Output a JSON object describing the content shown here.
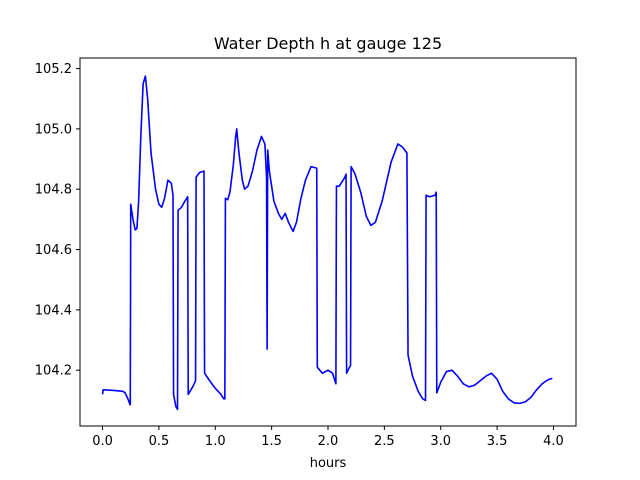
{
  "chart_data": {
    "type": "line",
    "title": "Water Depth h at gauge 125",
    "xlabel": "hours",
    "ylabel": "",
    "xlim": [
      -0.2,
      4.2
    ],
    "ylim": [
      104.015,
      105.235
    ],
    "xticks": [
      0.0,
      0.5,
      1.0,
      1.5,
      2.0,
      2.5,
      3.0,
      3.5,
      4.0
    ],
    "xtick_labels": [
      "0.0",
      "0.5",
      "1.0",
      "1.5",
      "2.0",
      "2.5",
      "3.0",
      "3.5",
      "4.0"
    ],
    "yticks": [
      104.2,
      104.4,
      104.6,
      104.8,
      105.0,
      105.2
    ],
    "ytick_labels": [
      "104.2",
      "104.4",
      "104.6",
      "104.8",
      "105.0",
      "105.2"
    ],
    "grid": false,
    "legend": "none",
    "series": [
      {
        "color": "#0000ff",
        "points": [
          [
            0.0,
            104.12
          ],
          [
            0.005,
            104.135
          ],
          [
            0.1,
            104.133
          ],
          [
            0.18,
            104.13
          ],
          [
            0.2,
            104.125
          ],
          [
            0.225,
            104.105
          ],
          [
            0.245,
            104.085
          ],
          [
            0.246,
            104.09
          ],
          [
            0.25,
            104.75
          ],
          [
            0.27,
            104.7
          ],
          [
            0.29,
            104.665
          ],
          [
            0.305,
            104.67
          ],
          [
            0.32,
            104.76
          ],
          [
            0.34,
            104.98
          ],
          [
            0.36,
            105.15
          ],
          [
            0.38,
            105.175
          ],
          [
            0.4,
            105.1
          ],
          [
            0.43,
            104.92
          ],
          [
            0.47,
            104.8
          ],
          [
            0.5,
            104.75
          ],
          [
            0.525,
            104.74
          ],
          [
            0.55,
            104.77
          ],
          [
            0.58,
            104.83
          ],
          [
            0.61,
            104.82
          ],
          [
            0.625,
            104.78
          ],
          [
            0.63,
            104.12
          ],
          [
            0.65,
            104.08
          ],
          [
            0.665,
            104.07
          ],
          [
            0.67,
            104.73
          ],
          [
            0.7,
            104.74
          ],
          [
            0.73,
            104.76
          ],
          [
            0.755,
            104.775
          ],
          [
            0.76,
            104.12
          ],
          [
            0.8,
            104.145
          ],
          [
            0.825,
            104.165
          ],
          [
            0.83,
            104.84
          ],
          [
            0.86,
            104.855
          ],
          [
            0.9,
            104.86
          ],
          [
            0.905,
            104.19
          ],
          [
            0.95,
            104.165
          ],
          [
            1.0,
            104.14
          ],
          [
            1.05,
            104.12
          ],
          [
            1.075,
            104.105
          ],
          [
            1.085,
            104.105
          ],
          [
            1.09,
            104.77
          ],
          [
            1.11,
            104.765
          ],
          [
            1.13,
            104.79
          ],
          [
            1.16,
            104.88
          ],
          [
            1.18,
            104.97
          ],
          [
            1.19,
            105.0
          ],
          [
            1.21,
            104.92
          ],
          [
            1.24,
            104.83
          ],
          [
            1.26,
            104.8
          ],
          [
            1.29,
            104.81
          ],
          [
            1.33,
            104.86
          ],
          [
            1.37,
            104.93
          ],
          [
            1.41,
            104.975
          ],
          [
            1.44,
            104.95
          ],
          [
            1.455,
            104.84
          ],
          [
            1.46,
            104.27
          ],
          [
            1.465,
            104.93
          ],
          [
            1.48,
            104.86
          ],
          [
            1.52,
            104.76
          ],
          [
            1.56,
            104.72
          ],
          [
            1.59,
            104.7
          ],
          [
            1.62,
            104.72
          ],
          [
            1.65,
            104.69
          ],
          [
            1.69,
            104.66
          ],
          [
            1.72,
            104.69
          ],
          [
            1.76,
            104.77
          ],
          [
            1.8,
            104.83
          ],
          [
            1.85,
            104.875
          ],
          [
            1.9,
            104.87
          ],
          [
            1.905,
            104.21
          ],
          [
            1.95,
            104.19
          ],
          [
            2.0,
            104.2
          ],
          [
            2.04,
            104.19
          ],
          [
            2.07,
            104.155
          ],
          [
            2.075,
            104.81
          ],
          [
            2.1,
            104.81
          ],
          [
            2.15,
            104.84
          ],
          [
            2.16,
            104.85
          ],
          [
            2.165,
            104.19
          ],
          [
            2.19,
            104.21
          ],
          [
            2.2,
            104.215
          ],
          [
            2.205,
            104.875
          ],
          [
            2.24,
            104.85
          ],
          [
            2.29,
            104.79
          ],
          [
            2.34,
            104.71
          ],
          [
            2.38,
            104.68
          ],
          [
            2.42,
            104.69
          ],
          [
            2.48,
            104.76
          ],
          [
            2.56,
            104.89
          ],
          [
            2.62,
            104.95
          ],
          [
            2.66,
            104.94
          ],
          [
            2.7,
            104.92
          ],
          [
            2.71,
            104.25
          ],
          [
            2.75,
            104.18
          ],
          [
            2.8,
            104.13
          ],
          [
            2.84,
            104.105
          ],
          [
            2.865,
            104.1
          ],
          [
            2.87,
            104.78
          ],
          [
            2.9,
            104.775
          ],
          [
            2.95,
            104.78
          ],
          [
            2.96,
            104.79
          ],
          [
            2.965,
            104.125
          ],
          [
            3.0,
            104.16
          ],
          [
            3.05,
            104.195
          ],
          [
            3.1,
            104.2
          ],
          [
            3.15,
            104.18
          ],
          [
            3.2,
            104.155
          ],
          [
            3.25,
            104.145
          ],
          [
            3.3,
            104.15
          ],
          [
            3.35,
            104.165
          ],
          [
            3.4,
            104.18
          ],
          [
            3.45,
            104.19
          ],
          [
            3.5,
            104.17
          ],
          [
            3.55,
            104.13
          ],
          [
            3.6,
            104.105
          ],
          [
            3.65,
            104.092
          ],
          [
            3.7,
            104.09
          ],
          [
            3.75,
            104.095
          ],
          [
            3.8,
            104.11
          ],
          [
            3.85,
            104.135
          ],
          [
            3.9,
            104.155
          ],
          [
            3.95,
            104.168
          ],
          [
            3.99,
            104.173
          ]
        ]
      }
    ]
  }
}
